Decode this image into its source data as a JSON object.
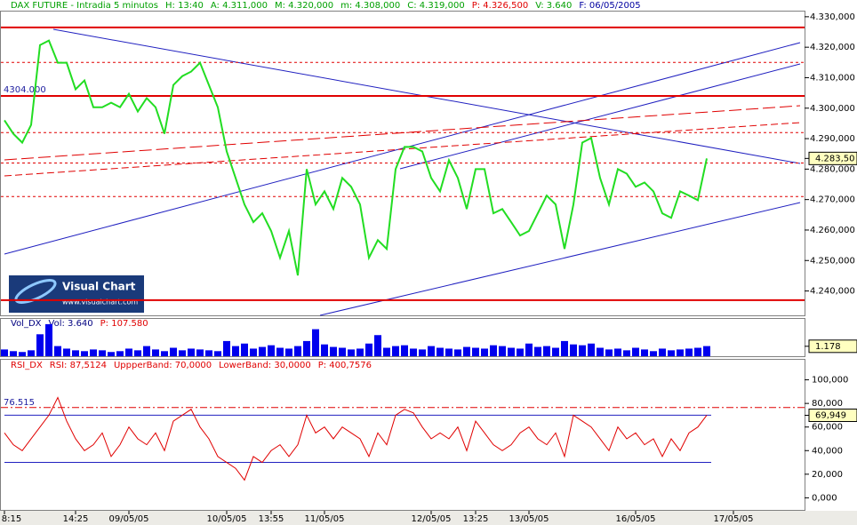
{
  "header": [
    {
      "text": "DAX FUTURE - Intradia 5 minutos",
      "color": "#00a000"
    },
    {
      "text": "H: 13:40",
      "color": "#00a000"
    },
    {
      "text": "A: 4.311,000",
      "color": "#00a000"
    },
    {
      "text": "M: 4.320,000",
      "color": "#00a000"
    },
    {
      "text": "m: 4.308,000",
      "color": "#00a000"
    },
    {
      "text": "C: 4.319,000",
      "color": "#00a000"
    },
    {
      "text": "P: 4.326,500",
      "color": "#e00000"
    },
    {
      "text": "V: 3.640",
      "color": "#00a000"
    },
    {
      "text": "F: 06/05/2005",
      "color": "#0000a0"
    }
  ],
  "logo": {
    "title": "Visual Chart",
    "url": "www.visualchart.com"
  },
  "chart_data": [
    {
      "type": "line",
      "name": "price",
      "color": "#22dd22",
      "x": [
        "8:15",
        null,
        null,
        null,
        null,
        null,
        null,
        null,
        "14:25",
        null,
        null,
        null,
        null,
        null,
        "09/05/05",
        null,
        null,
        null,
        null,
        null,
        null,
        null,
        null,
        null,
        null,
        "10/05/05",
        null,
        null,
        null,
        null,
        "13:55",
        null,
        null,
        null,
        null,
        null,
        "11/05/05",
        null,
        null,
        null,
        null,
        null,
        null,
        null,
        null,
        null,
        null,
        null,
        "12/05/05",
        null,
        null,
        null,
        null,
        "13:25",
        null,
        null,
        null,
        null,
        null,
        "13/05/05",
        null,
        null,
        null,
        null,
        null,
        null,
        null,
        null,
        null,
        null,
        null,
        "16/05/05",
        null,
        null,
        null,
        null,
        null,
        null,
        null,
        null,
        null,
        null,
        "17/05/05",
        null,
        null,
        null,
        null,
        null,
        null,
        null
      ],
      "values": [
        4296.0,
        4291.6,
        4288.7,
        4294.5,
        4320.7,
        4322.2,
        4314.9,
        4314.9,
        4306.2,
        4309.1,
        4300.3,
        4300.3,
        4301.8,
        4300.3,
        4304.7,
        4298.9,
        4303.3,
        4300.3,
        4291.6,
        4307.6,
        4310.5,
        4312.0,
        4314.9,
        4307.6,
        4300.3,
        4285.8,
        4277.1,
        4268.4,
        4262.6,
        4265.5,
        4259.7,
        4250.9,
        4259.7,
        4245.1,
        4280.0,
        4268.4,
        4272.7,
        4266.9,
        4277.1,
        4274.2,
        4268.4,
        4250.9,
        4256.7,
        4253.8,
        4280.0,
        4287.3,
        4287.3,
        4285.8,
        4277.1,
        4272.7,
        4282.9,
        4277.1,
        4266.9,
        4280.0,
        4280.0,
        4265.5,
        4266.9,
        4262.6,
        4258.2,
        4259.7,
        4265.5,
        4271.3,
        4268.4,
        4253.8,
        4268.4,
        4288.7,
        4290.2,
        4277.1,
        4268.4,
        4280.0,
        4278.5,
        4274.2,
        4275.6,
        4272.7,
        4265.5,
        4264.0,
        4272.7,
        4271.3,
        4269.8,
        4283.5,
        null,
        null,
        null,
        null,
        null,
        null,
        null,
        null,
        null,
        null
      ],
      "ylim": [
        4232,
        4332
      ],
      "yticks": [
        {
          "value": 4330,
          "label": "4.330,000"
        },
        {
          "value": 4320,
          "label": "4.320,000"
        },
        {
          "value": 4310,
          "label": "4.310,000"
        },
        {
          "value": 4300,
          "label": "4.300,000"
        },
        {
          "value": 4290,
          "label": "4.290,000"
        },
        {
          "value": 4280,
          "label": "4.280,000"
        },
        {
          "value": 4270,
          "label": "4.270,000"
        },
        {
          "value": 4260,
          "label": "4.260,000"
        },
        {
          "value": 4250,
          "label": "4.250,000"
        },
        {
          "value": 4240,
          "label": "4.240,000"
        }
      ],
      "last": {
        "value": 4283.5,
        "label": "4.283,50"
      },
      "solid_levels": [
        4326.5,
        {
          "value": 4304,
          "label": "4304.000"
        },
        4237
      ],
      "dashed_levels": [
        4315,
        4292,
        4282,
        4271
      ]
    },
    {
      "type": "bar",
      "name": "volume",
      "color": "#0000ee",
      "header": [
        {
          "text": "Vol_DX",
          "color": "#000080"
        },
        {
          "text": "Vol: 3.640",
          "color": "#000080"
        },
        {
          "text": "P: 107.580",
          "color": "#e00000"
        }
      ],
      "values": [
        800,
        600,
        500,
        700,
        2600,
        3800,
        1200,
        900,
        700,
        600,
        800,
        700,
        500,
        600,
        900,
        700,
        1200,
        800,
        600,
        1000,
        700,
        900,
        800,
        700,
        600,
        1800,
        1200,
        1500,
        900,
        1100,
        1300,
        1000,
        900,
        1200,
        1800,
        3200,
        1400,
        1100,
        1000,
        800,
        900,
        1500,
        2500,
        1000,
        1200,
        1300,
        900,
        800,
        1200,
        1000,
        900,
        800,
        1100,
        1000,
        900,
        1300,
        1200,
        1000,
        900,
        1500,
        1100,
        1200,
        1000,
        1800,
        1400,
        1300,
        1500,
        1000,
        800,
        900,
        700,
        1000,
        800,
        600,
        900,
        700,
        800,
        900,
        1000,
        1200,
        null,
        null,
        null,
        null,
        null,
        null,
        null,
        null,
        null,
        null
      ],
      "ylim": [
        0,
        4000
      ],
      "last": {
        "value": 1178,
        "label": "1.178"
      }
    },
    {
      "type": "line",
      "name": "rsi",
      "color": "#e00000",
      "header": [
        {
          "text": "RSI_DX",
          "color": "#e00000"
        },
        {
          "text": "RSI: 87,5124",
          "color": "#e00000"
        },
        {
          "text": "UppperBand: 70,0000",
          "color": "#e00000"
        },
        {
          "text": "LowerBand: 30,0000",
          "color": "#e00000"
        },
        {
          "text": "P: 400,7576",
          "color": "#e00000"
        }
      ],
      "values": [
        55,
        45,
        40,
        50,
        60,
        70,
        85,
        65,
        50,
        40,
        45,
        55,
        35,
        45,
        60,
        50,
        45,
        55,
        40,
        65,
        70,
        75,
        60,
        50,
        35,
        30,
        25,
        15,
        35,
        30,
        40,
        45,
        35,
        45,
        70,
        55,
        60,
        50,
        60,
        55,
        50,
        35,
        55,
        45,
        70,
        75,
        72,
        60,
        50,
        55,
        50,
        60,
        40,
        65,
        55,
        45,
        40,
        45,
        55,
        60,
        50,
        45,
        55,
        35,
        70,
        65,
        60,
        50,
        40,
        60,
        50,
        55,
        45,
        50,
        35,
        50,
        40,
        55,
        60,
        70,
        null,
        null,
        null,
        null,
        null,
        null,
        null,
        null,
        null,
        null
      ],
      "ylim": [
        -11,
        117
      ],
      "yticks": [
        {
          "value": 100,
          "label": "100,000"
        },
        {
          "value": 80,
          "label": "80,000"
        },
        {
          "value": 60,
          "label": "60,000"
        },
        {
          "value": 40,
          "label": "40,000"
        },
        {
          "value": 20,
          "label": "20,000"
        },
        {
          "value": 0,
          "label": "0,000"
        }
      ],
      "bands": [
        70,
        30
      ],
      "level": {
        "value": 76.515,
        "label": "76.515"
      },
      "last": {
        "value": 69.949,
        "label": "69,949"
      }
    }
  ]
}
